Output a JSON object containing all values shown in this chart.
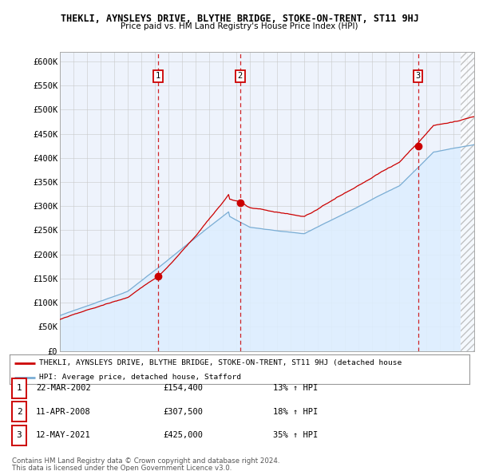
{
  "title": "THEKLI, AYNSLEYS DRIVE, BLYTHE BRIDGE, STOKE-ON-TRENT, ST11 9HJ",
  "subtitle": "Price paid vs. HM Land Registry's House Price Index (HPI)",
  "ylabel_ticks": [
    "£0",
    "£50K",
    "£100K",
    "£150K",
    "£200K",
    "£250K",
    "£300K",
    "£350K",
    "£400K",
    "£450K",
    "£500K",
    "£550K",
    "£600K"
  ],
  "ytick_values": [
    0,
    50000,
    100000,
    150000,
    200000,
    250000,
    300000,
    350000,
    400000,
    450000,
    500000,
    550000,
    600000
  ],
  "sale1_t": 2002.22,
  "sale1_price": 154400,
  "sale2_t": 2008.27,
  "sale2_price": 307500,
  "sale3_t": 2021.36,
  "sale3_price": 425000,
  "legend_red": "THEKLI, AYNSLEYS DRIVE, BLYTHE BRIDGE, STOKE-ON-TRENT, ST11 9HJ (detached house",
  "legend_blue": "HPI: Average price, detached house, Stafford",
  "footnote1": "Contains HM Land Registry data © Crown copyright and database right 2024.",
  "footnote2": "This data is licensed under the Open Government Licence v3.0.",
  "red_color": "#cc0000",
  "blue_color": "#7aadd4",
  "blue_fill": "#ddeeff",
  "background_chart": "#eef3fc",
  "grid_color": "#c8c8c8",
  "dashed_line_color": "#cc0000",
  "hatch_start": 2024.5,
  "xmin": 1995.0,
  "xmax": 2025.5,
  "ymin": 0,
  "ymax": 620000,
  "row_data": [
    [
      "1",
      "22-MAR-2002",
      "£154,400",
      "13% ↑ HPI"
    ],
    [
      "2",
      "11-APR-2008",
      "£307,500",
      "18% ↑ HPI"
    ],
    [
      "3",
      "12-MAY-2021",
      "£425,000",
      "35% ↑ HPI"
    ]
  ]
}
